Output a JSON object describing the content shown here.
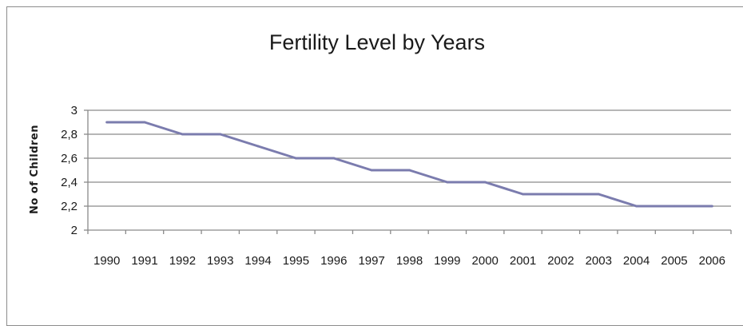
{
  "chart_data": {
    "type": "line",
    "title": "Fertility Level by Years",
    "xlabel": "",
    "ylabel": "No of Children",
    "categories": [
      "1990",
      "1991",
      "1992",
      "1993",
      "1994",
      "1995",
      "1996",
      "1997",
      "1998",
      "1999",
      "2000",
      "2001",
      "2002",
      "2003",
      "2004",
      "2005",
      "2006"
    ],
    "series": [
      {
        "values": [
          2.9,
          2.9,
          2.8,
          2.8,
          2.7,
          2.6,
          2.6,
          2.5,
          2.5,
          2.4,
          2.4,
          2.3,
          2.3,
          2.3,
          2.2,
          2.2,
          2.2
        ]
      }
    ],
    "ylim": [
      2,
      3
    ],
    "yticks": [
      2,
      2.2,
      2.4,
      2.6,
      2.8,
      3
    ],
    "ytick_labels": [
      "2",
      "2,2",
      "2,4",
      "2,6",
      "2,8",
      "3"
    ],
    "grid": true,
    "legend": "none",
    "colors": {
      "line": "#7b7cae",
      "grid": "#8a8a8a",
      "axis": "#8a8a8a"
    }
  }
}
